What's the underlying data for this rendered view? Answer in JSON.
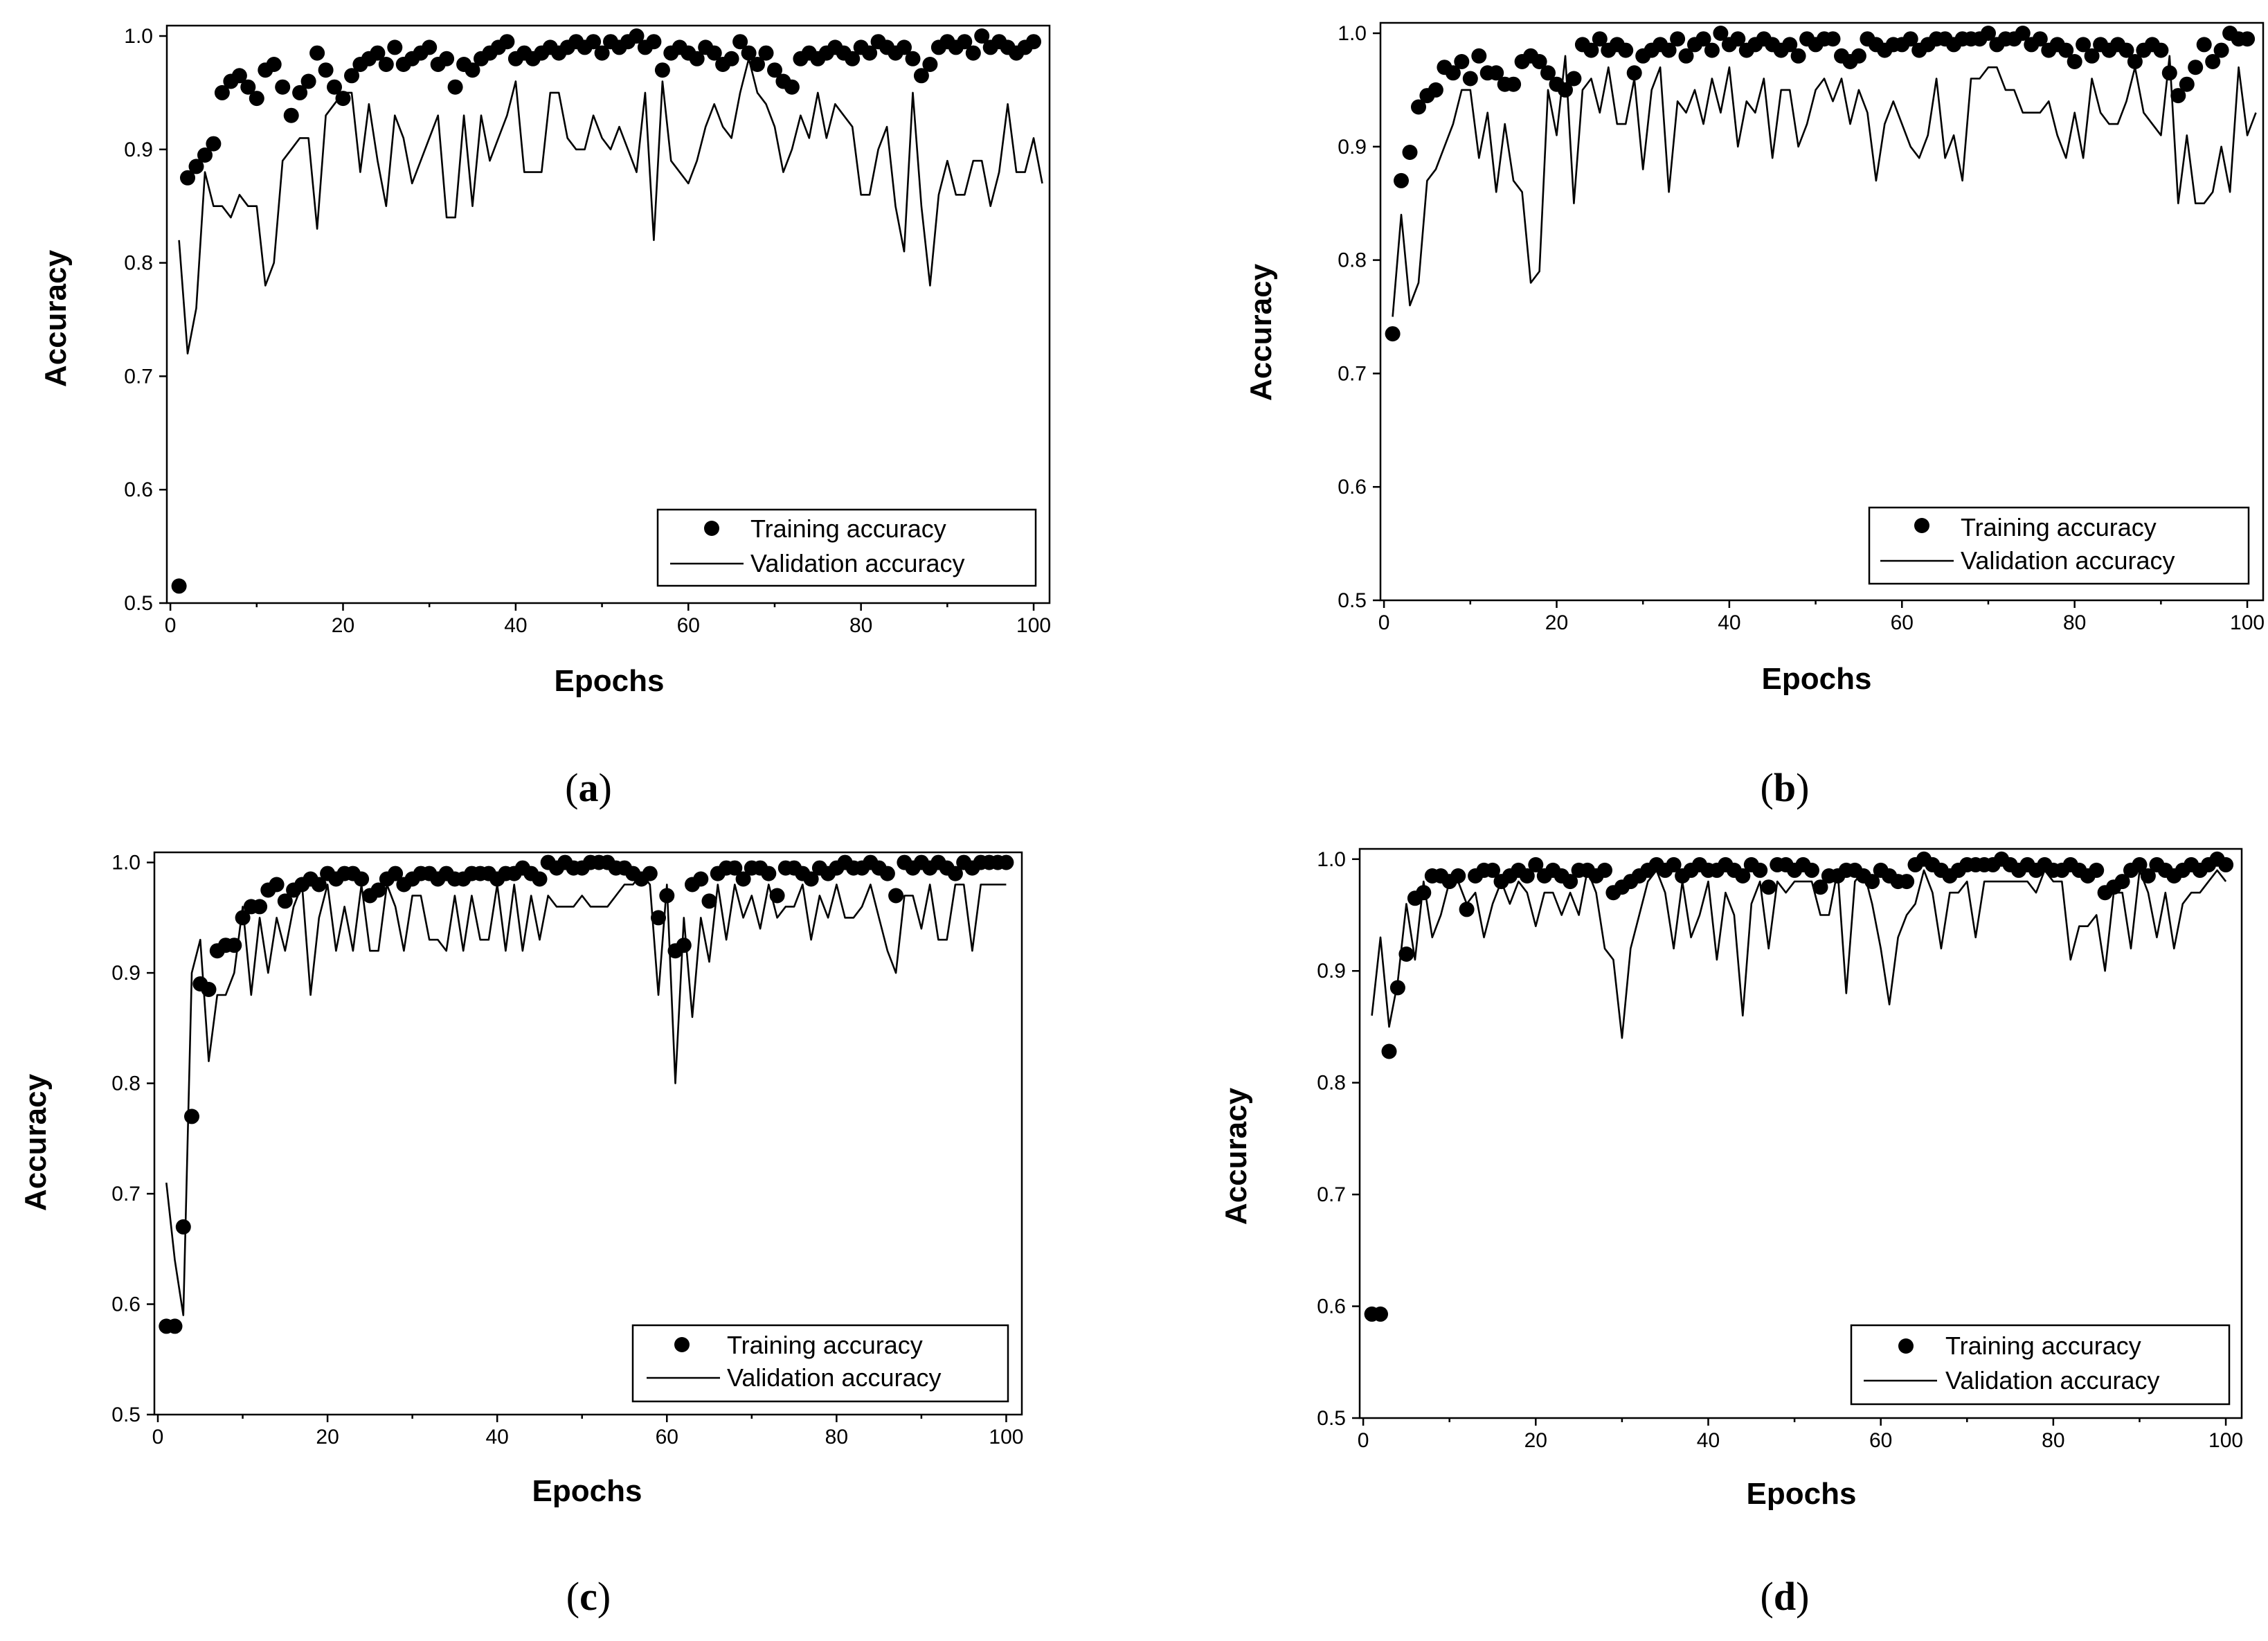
{
  "chart_data": [
    {
      "panel": "a",
      "type": "line",
      "caption_letter": "a",
      "xlabel": "Epochs",
      "ylabel": "Accuracy",
      "xlim": [
        0,
        100
      ],
      "ylim": [
        0.5,
        1.0
      ],
      "xticks": [
        0,
        20,
        40,
        60,
        80,
        100
      ],
      "xtick_labels": [
        "0",
        "20",
        "40",
        "60",
        "80",
        "100"
      ],
      "yticks": [
        0.5,
        0.6,
        0.7,
        0.8,
        0.9,
        1.0
      ],
      "ytick_labels": [
        "0.5",
        "0.6",
        "0.7",
        "0.8",
        "0.9",
        "1.0"
      ],
      "legend": [
        "Training accuracy",
        "Validation accuracy"
      ],
      "series": [
        {
          "name": "Training accuracy",
          "style": "markers",
          "values": [
            0.515,
            0.875,
            0.885,
            0.895,
            0.905,
            0.95,
            0.96,
            0.965,
            0.955,
            0.945,
            0.97,
            0.975,
            0.955,
            0.93,
            0.95,
            0.96,
            0.985,
            0.97,
            0.955,
            0.945,
            0.965,
            0.975,
            0.98,
            0.985,
            0.975,
            0.99,
            0.975,
            0.98,
            0.985,
            0.99,
            0.975,
            0.98,
            0.955,
            0.975,
            0.97,
            0.98,
            0.985,
            0.99,
            0.995,
            0.98,
            0.985,
            0.98,
            0.985,
            0.99,
            0.985,
            0.99,
            0.995,
            0.99,
            0.995,
            0.985,
            0.995,
            0.99,
            0.995,
            1.0,
            0.99,
            0.995,
            0.97,
            0.985,
            0.99,
            0.985,
            0.98,
            0.99,
            0.985,
            0.975,
            0.98,
            0.995,
            0.985,
            0.975,
            0.985,
            0.97,
            0.96,
            0.955,
            0.98,
            0.985,
            0.98,
            0.985,
            0.99,
            0.985,
            0.98,
            0.99,
            0.985,
            0.995,
            0.99,
            0.985,
            0.99,
            0.98,
            0.965,
            0.975,
            0.99,
            0.995,
            0.99,
            0.995,
            0.985,
            1.0,
            0.99,
            0.995,
            0.99,
            0.985,
            0.99,
            0.995
          ]
        },
        {
          "name": "Validation accuracy",
          "style": "line",
          "values": [
            0.82,
            0.72,
            0.76,
            0.88,
            0.85,
            0.85,
            0.84,
            0.86,
            0.85,
            0.85,
            0.78,
            0.8,
            0.89,
            0.9,
            0.91,
            0.91,
            0.83,
            0.93,
            0.94,
            0.95,
            0.95,
            0.88,
            0.94,
            0.89,
            0.85,
            0.93,
            0.91,
            0.87,
            0.89,
            0.91,
            0.93,
            0.84,
            0.84,
            0.93,
            0.85,
            0.93,
            0.89,
            0.91,
            0.93,
            0.96,
            0.88,
            0.88,
            0.88,
            0.95,
            0.95,
            0.91,
            0.9,
            0.9,
            0.93,
            0.91,
            0.9,
            0.92,
            0.9,
            0.88,
            0.95,
            0.82,
            0.96,
            0.89,
            0.88,
            0.87,
            0.89,
            0.92,
            0.94,
            0.92,
            0.91,
            0.95,
            0.98,
            0.95,
            0.94,
            0.92,
            0.88,
            0.9,
            0.93,
            0.91,
            0.95,
            0.91,
            0.94,
            0.93,
            0.92,
            0.86,
            0.86,
            0.9,
            0.92,
            0.85,
            0.81,
            0.95,
            0.85,
            0.78,
            0.86,
            0.89,
            0.86,
            0.86,
            0.89,
            0.89,
            0.85,
            0.88,
            0.94,
            0.88,
            0.88,
            0.91,
            0.87
          ]
        }
      ]
    },
    {
      "panel": "b",
      "type": "line",
      "caption_letter": "b",
      "xlabel": "Epochs",
      "ylabel": "Accuracy",
      "xlim": [
        0,
        100
      ],
      "ylim": [
        0.5,
        1.0
      ],
      "xticks": [
        0,
        20,
        40,
        60,
        80,
        100
      ],
      "xtick_labels": [
        "0",
        "20",
        "40",
        "60",
        "80",
        "100"
      ],
      "yticks": [
        0.5,
        0.6,
        0.7,
        0.8,
        0.9,
        1.0
      ],
      "ytick_labels": [
        "0.5",
        "0.6",
        "0.7",
        "0.8",
        "0.9",
        "1.0"
      ],
      "legend": [
        "Training accuracy",
        "Validation accuracy"
      ],
      "series": [
        {
          "name": "Training accuracy",
          "style": "markers",
          "values": [
            0.735,
            0.87,
            0.895,
            0.935,
            0.945,
            0.95,
            0.97,
            0.965,
            0.975,
            0.96,
            0.98,
            0.965,
            0.965,
            0.955,
            0.955,
            0.975,
            0.98,
            0.975,
            0.965,
            0.955,
            0.95,
            0.96,
            0.99,
            0.985,
            0.995,
            0.985,
            0.99,
            0.985,
            0.965,
            0.98,
            0.985,
            0.99,
            0.985,
            0.995,
            0.98,
            0.99,
            0.995,
            0.985,
            1.0,
            0.99,
            0.995,
            0.985,
            0.99,
            0.995,
            0.99,
            0.985,
            0.99,
            0.98,
            0.995,
            0.99,
            0.995,
            0.995,
            0.98,
            0.975,
            0.98,
            0.995,
            0.99,
            0.985,
            0.99,
            0.99,
            0.995,
            0.985,
            0.99,
            0.995,
            0.995,
            0.99,
            0.995,
            0.995,
            0.995,
            1.0,
            0.99,
            0.995,
            0.995,
            1.0,
            0.99,
            0.995,
            0.985,
            0.99,
            0.985,
            0.975,
            0.99,
            0.98,
            0.99,
            0.985,
            0.99,
            0.985,
            0.975,
            0.985,
            0.99,
            0.985,
            0.965,
            0.945,
            0.955,
            0.97,
            0.99,
            0.975,
            0.985,
            1.0,
            0.995,
            0.995
          ]
        },
        {
          "name": "Validation accuracy",
          "style": "line",
          "values": [
            0.75,
            0.84,
            0.76,
            0.78,
            0.87,
            0.88,
            0.9,
            0.92,
            0.95,
            0.95,
            0.89,
            0.93,
            0.86,
            0.92,
            0.87,
            0.86,
            0.78,
            0.79,
            0.95,
            0.91,
            0.98,
            0.85,
            0.95,
            0.96,
            0.93,
            0.97,
            0.92,
            0.92,
            0.96,
            0.88,
            0.95,
            0.97,
            0.86,
            0.94,
            0.93,
            0.95,
            0.92,
            0.96,
            0.93,
            0.97,
            0.9,
            0.94,
            0.93,
            0.96,
            0.89,
            0.95,
            0.95,
            0.9,
            0.92,
            0.95,
            0.96,
            0.94,
            0.96,
            0.92,
            0.95,
            0.93,
            0.87,
            0.92,
            0.94,
            0.92,
            0.9,
            0.89,
            0.91,
            0.96,
            0.89,
            0.91,
            0.87,
            0.96,
            0.96,
            0.97,
            0.97,
            0.95,
            0.95,
            0.93,
            0.93,
            0.93,
            0.94,
            0.91,
            0.89,
            0.93,
            0.89,
            0.96,
            0.93,
            0.92,
            0.92,
            0.94,
            0.97,
            0.93,
            0.92,
            0.91,
            0.98,
            0.85,
            0.91,
            0.85,
            0.85,
            0.86,
            0.9,
            0.86,
            0.97,
            0.91,
            0.93
          ]
        }
      ]
    },
    {
      "panel": "c",
      "type": "line",
      "caption_letter": "c",
      "xlabel": "Epochs",
      "ylabel": "Accuracy",
      "xlim": [
        0,
        100
      ],
      "ylim": [
        0.5,
        1.0
      ],
      "xticks": [
        0,
        20,
        40,
        60,
        80,
        100
      ],
      "xtick_labels": [
        "0",
        "20",
        "40",
        "60",
        "80",
        "100"
      ],
      "yticks": [
        0.5,
        0.6,
        0.7,
        0.8,
        0.9,
        1.0
      ],
      "ytick_labels": [
        "0.5",
        "0.6",
        "0.7",
        "0.8",
        "0.9",
        "1.0"
      ],
      "legend": [
        "Training accuracy",
        "Validation accuracy"
      ],
      "series": [
        {
          "name": "Training accuracy",
          "style": "markers",
          "values": [
            0.58,
            0.58,
            0.67,
            0.77,
            0.89,
            0.885,
            0.92,
            0.925,
            0.925,
            0.95,
            0.96,
            0.96,
            0.975,
            0.98,
            0.965,
            0.975,
            0.98,
            0.985,
            0.98,
            0.99,
            0.985,
            0.99,
            0.99,
            0.985,
            0.97,
            0.975,
            0.985,
            0.99,
            0.98,
            0.985,
            0.99,
            0.99,
            0.985,
            0.99,
            0.985,
            0.985,
            0.99,
            0.99,
            0.99,
            0.985,
            0.99,
            0.99,
            0.995,
            0.99,
            0.985,
            1.0,
            0.995,
            1.0,
            0.995,
            0.995,
            1.0,
            1.0,
            1.0,
            0.995,
            0.995,
            0.99,
            0.985,
            0.99,
            0.95,
            0.97,
            0.92,
            0.925,
            0.98,
            0.985,
            0.965,
            0.99,
            0.995,
            0.995,
            0.985,
            0.995,
            0.995,
            0.99,
            0.97,
            0.995,
            0.995,
            0.99,
            0.985,
            0.995,
            0.99,
            0.995,
            1.0,
            0.995,
            0.995,
            1.0,
            0.995,
            0.99,
            0.97,
            1.0,
            0.995,
            1.0,
            0.995,
            1.0,
            0.995,
            0.99,
            1.0,
            0.995,
            1.0,
            1.0,
            1.0,
            1.0
          ]
        },
        {
          "name": "Validation accuracy",
          "style": "line",
          "values": [
            0.71,
            0.64,
            0.59,
            0.9,
            0.93,
            0.82,
            0.88,
            0.88,
            0.9,
            0.96,
            0.88,
            0.95,
            0.9,
            0.95,
            0.92,
            0.96,
            0.98,
            0.88,
            0.95,
            0.98,
            0.92,
            0.96,
            0.92,
            0.98,
            0.92,
            0.92,
            0.98,
            0.96,
            0.92,
            0.97,
            0.97,
            0.93,
            0.93,
            0.92,
            0.97,
            0.92,
            0.97,
            0.93,
            0.93,
            0.98,
            0.92,
            0.98,
            0.92,
            0.97,
            0.93,
            0.97,
            0.96,
            0.96,
            0.96,
            0.97,
            0.96,
            0.96,
            0.96,
            0.97,
            0.98,
            0.98,
            0.99,
            0.98,
            0.88,
            0.98,
            0.8,
            0.95,
            0.86,
            0.95,
            0.91,
            0.98,
            0.93,
            0.98,
            0.95,
            0.97,
            0.94,
            0.98,
            0.95,
            0.96,
            0.96,
            0.98,
            0.93,
            0.97,
            0.95,
            0.98,
            0.95,
            0.95,
            0.96,
            0.98,
            0.95,
            0.92,
            0.9,
            0.97,
            0.97,
            0.94,
            0.98,
            0.93,
            0.93,
            0.98,
            0.98,
            0.92,
            0.98,
            0.98,
            0.98,
            0.98
          ]
        }
      ]
    },
    {
      "panel": "d",
      "type": "line",
      "caption_letter": "d",
      "xlabel": "Epochs",
      "ylabel": "Accuracy",
      "xlim": [
        0,
        100
      ],
      "ylim": [
        0.5,
        1.0
      ],
      "xticks": [
        0,
        20,
        40,
        60,
        80,
        100
      ],
      "xtick_labels": [
        "0",
        "20",
        "40",
        "60",
        "80",
        "100"
      ],
      "yticks": [
        0.5,
        0.6,
        0.7,
        0.8,
        0.9,
        1.0
      ],
      "ytick_labels": [
        "0.5",
        "0.6",
        "0.7",
        "0.8",
        "0.9",
        "1.0"
      ],
      "legend": [
        "Training accuracy",
        "Validation accuracy"
      ],
      "series": [
        {
          "name": "Training accuracy",
          "style": "markers",
          "values": [
            0.593,
            0.593,
            0.828,
            0.885,
            0.915,
            0.965,
            0.97,
            0.985,
            0.985,
            0.98,
            0.985,
            0.955,
            0.985,
            0.99,
            0.99,
            0.98,
            0.985,
            0.99,
            0.985,
            0.995,
            0.985,
            0.99,
            0.985,
            0.98,
            0.99,
            0.99,
            0.985,
            0.99,
            0.97,
            0.975,
            0.98,
            0.985,
            0.99,
            0.995,
            0.99,
            0.995,
            0.985,
            0.99,
            0.995,
            0.99,
            0.99,
            0.995,
            0.99,
            0.985,
            0.995,
            0.99,
            0.975,
            0.995,
            0.995,
            0.99,
            0.995,
            0.99,
            0.975,
            0.985,
            0.985,
            0.99,
            0.99,
            0.985,
            0.98,
            0.99,
            0.985,
            0.98,
            0.98,
            0.995,
            1.0,
            0.995,
            0.99,
            0.985,
            0.99,
            0.995,
            0.995,
            0.995,
            0.995,
            1.0,
            0.995,
            0.99,
            0.995,
            0.99,
            0.995,
            0.99,
            0.99,
            0.995,
            0.99,
            0.985,
            0.99,
            0.97,
            0.975,
            0.98,
            0.99,
            0.995,
            0.985,
            0.995,
            0.99,
            0.985,
            0.99,
            0.995,
            0.99,
            0.995,
            1.0,
            0.995
          ]
        },
        {
          "name": "Validation accuracy",
          "style": "line",
          "values": [
            0.86,
            0.93,
            0.85,
            0.89,
            0.96,
            0.91,
            0.98,
            0.93,
            0.95,
            0.98,
            0.98,
            0.96,
            0.97,
            0.93,
            0.96,
            0.98,
            0.96,
            0.98,
            0.97,
            0.94,
            0.97,
            0.97,
            0.95,
            0.97,
            0.95,
            0.99,
            0.97,
            0.92,
            0.91,
            0.84,
            0.92,
            0.95,
            0.98,
            0.99,
            0.97,
            0.92,
            0.98,
            0.93,
            0.95,
            0.98,
            0.91,
            0.97,
            0.95,
            0.86,
            0.96,
            0.98,
            0.92,
            0.98,
            0.97,
            0.98,
            0.98,
            0.98,
            0.95,
            0.95,
            0.99,
            0.88,
            0.98,
            0.99,
            0.96,
            0.92,
            0.87,
            0.93,
            0.95,
            0.96,
            0.99,
            0.97,
            0.92,
            0.97,
            0.97,
            0.98,
            0.93,
            0.98,
            0.98,
            0.98,
            0.98,
            0.98,
            0.98,
            0.97,
            0.99,
            0.98,
            0.98,
            0.91,
            0.94,
            0.94,
            0.95,
            0.9,
            0.97,
            0.97,
            0.92,
            0.99,
            0.97,
            0.93,
            0.97,
            0.92,
            0.96,
            0.97,
            0.97,
            0.98,
            0.99,
            0.98
          ]
        }
      ]
    }
  ]
}
